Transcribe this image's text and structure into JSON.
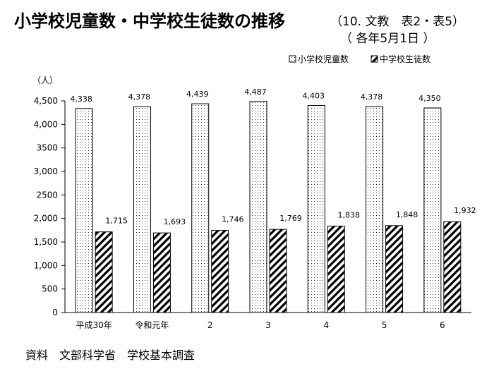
{
  "header": {
    "title": "小学校児童数・中学校生徒数の推移",
    "title_note": "（10. 文教　表2・表5）",
    "subtitle": "（ 各年5月1日 ）"
  },
  "footer": {
    "source": "資料　文部科学省　学校基本調査"
  },
  "chart_data": {
    "type": "bar",
    "categories": [
      "平成30年",
      "令和元年",
      "2",
      "3",
      "4",
      "5",
      "6"
    ],
    "series": [
      {
        "name": "小学校児童数",
        "values": [
          4338,
          4378,
          4439,
          4487,
          4403,
          4378,
          4350
        ],
        "labels": [
          "4,338",
          "4,378",
          "4,439",
          "4,487",
          "4,403",
          "4,378",
          "4,350"
        ],
        "pattern": "dots"
      },
      {
        "name": "中学校生徒数",
        "values": [
          1715,
          1693,
          1746,
          1769,
          1838,
          1848,
          1932
        ],
        "labels": [
          "1,715",
          "1,693",
          "1,746",
          "1,769",
          "1,838",
          "1,848",
          "1,932"
        ],
        "pattern": "diagonal-hatch"
      }
    ],
    "ylabel": "（人）",
    "ylim": [
      0,
      4500
    ],
    "yticks": [
      {
        "value": 0,
        "label": "0"
      },
      {
        "value": 500,
        "label": "500"
      },
      {
        "value": 1000,
        "label": "1,000"
      },
      {
        "value": 1500,
        "label": "1,500"
      },
      {
        "value": 2000,
        "label": "2,000"
      },
      {
        "value": 2500,
        "label": "2500"
      },
      {
        "value": 3000,
        "label": "3,000"
      },
      {
        "value": 3500,
        "label": "3500"
      },
      {
        "value": 4000,
        "label": "4,000"
      },
      {
        "value": 4500,
        "label": "4,500"
      }
    ],
    "legend_position": "top-right",
    "grid": false
  }
}
